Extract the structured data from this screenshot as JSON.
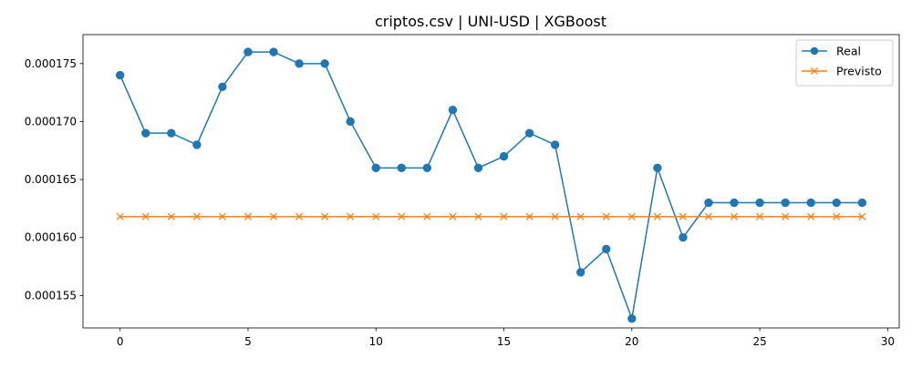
{
  "chart_data": {
    "type": "line",
    "title": "criptos.csv | UNI-USD | XGBoost",
    "xlabel": "",
    "ylabel": "",
    "xlim": [
      -1.45,
      30.45
    ],
    "ylim": [
      0.0001522,
      0.0001775
    ],
    "xticks": [
      0,
      5,
      10,
      15,
      20,
      25,
      30
    ],
    "xtick_labels": [
      "0",
      "5",
      "10",
      "15",
      "20",
      "25",
      "30"
    ],
    "yticks": [
      0.000155,
      0.00016,
      0.000165,
      0.00017,
      0.000175
    ],
    "ytick_labels": [
      "0.000155",
      "0.000160",
      "0.000165",
      "0.000170",
      "0.000175"
    ],
    "grid": false,
    "legend_position": "top-right",
    "x": [
      0,
      1,
      2,
      3,
      4,
      5,
      6,
      7,
      8,
      9,
      10,
      11,
      12,
      13,
      14,
      15,
      16,
      17,
      18,
      19,
      20,
      21,
      22,
      23,
      24,
      25,
      26,
      27,
      28,
      29
    ],
    "series": [
      {
        "name": "Real",
        "color": "#1f77b4",
        "marker": "circle",
        "values": [
          0.000174,
          0.000169,
          0.000169,
          0.000168,
          0.000173,
          0.000176,
          0.000176,
          0.000175,
          0.000175,
          0.00017,
          0.000166,
          0.000166,
          0.000166,
          0.000171,
          0.000166,
          0.000167,
          0.000169,
          0.000168,
          0.000157,
          0.000159,
          0.000153,
          0.000166,
          0.00016,
          0.000163,
          0.000163,
          0.000163,
          0.000163,
          0.000163,
          0.000163,
          0.000163
        ]
      },
      {
        "name": "Previsto",
        "color": "#ff7f0e",
        "marker": "x",
        "values": [
          0.0001618,
          0.0001618,
          0.0001618,
          0.0001618,
          0.0001618,
          0.0001618,
          0.0001618,
          0.0001618,
          0.0001618,
          0.0001618,
          0.0001618,
          0.0001618,
          0.0001618,
          0.0001618,
          0.0001618,
          0.0001618,
          0.0001618,
          0.0001618,
          0.0001618,
          0.0001618,
          0.0001618,
          0.0001618,
          0.0001618,
          0.0001618,
          0.0001618,
          0.0001618,
          0.0001618,
          0.0001618,
          0.0001618,
          0.0001618
        ]
      }
    ]
  }
}
